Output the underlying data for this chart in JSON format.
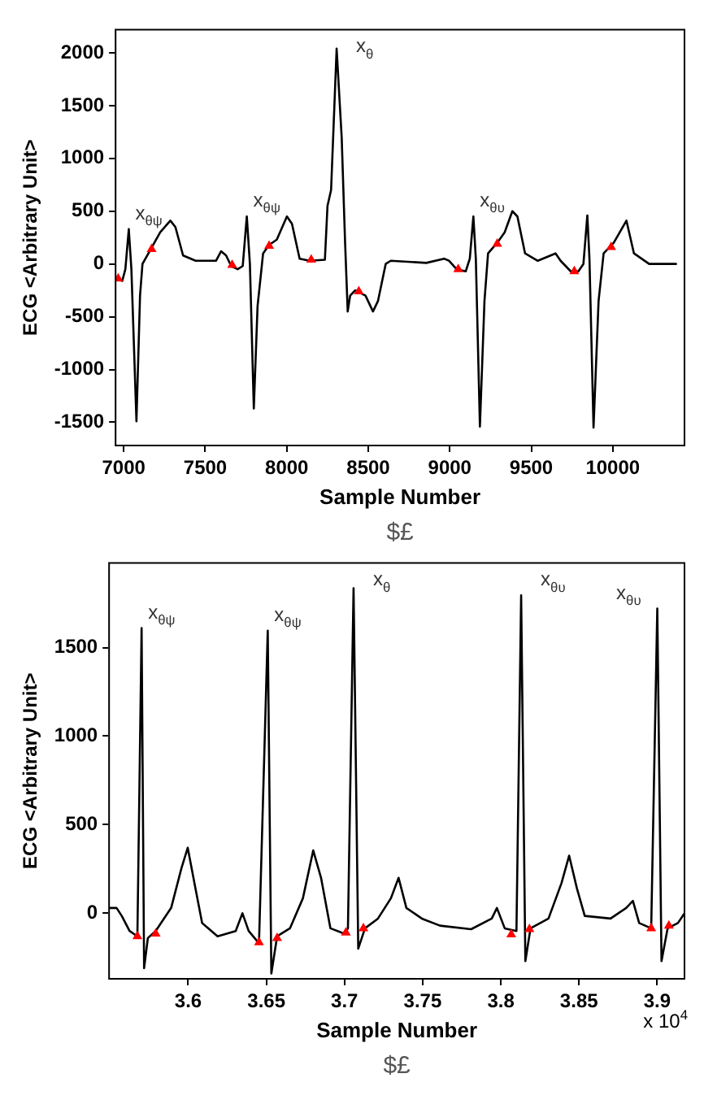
{
  "chart_data": [
    {
      "type": "line",
      "xlabel": "Sample Number",
      "ylabel": "ECG <Arbitrary Unit>",
      "xlim": [
        6950,
        10440
      ],
      "ylim": [
        -1720,
        2220
      ],
      "xticks": [
        7000,
        7500,
        8000,
        8500,
        9000,
        9500,
        10000
      ],
      "yticks": [
        -1500,
        -1000,
        -500,
        0,
        500,
        1000,
        1500,
        2000
      ],
      "grid": false,
      "legend": false,
      "series": [
        {
          "type": "line",
          "color": "#000000",
          "marker": "none",
          "x": [
            6960,
            6991,
            7010,
            7031,
            7047,
            7078,
            7100,
            7115,
            7162,
            7224,
            7286,
            7317,
            7364,
            7441,
            7566,
            7597,
            7628,
            7659,
            7699,
            7730,
            7755,
            7774,
            7798,
            7821,
            7855,
            7892,
            7939,
            8001,
            8032,
            8079,
            8141,
            8234,
            8250,
            8272,
            8306,
            8337,
            8358,
            8374,
            8389,
            8420,
            8483,
            8529,
            8560,
            8607,
            8638,
            8856,
            8965,
            8996,
            9042,
            9098,
            9123,
            9145,
            9160,
            9185,
            9213,
            9235,
            9291,
            9337,
            9384,
            9415,
            9462,
            9540,
            9649,
            9680,
            9742,
            9789,
            9820,
            9844,
            9857,
            9882,
            9913,
            9944,
            10006,
            10084,
            10130,
            10223,
            10388
          ],
          "values": [
            -140,
            -160,
            -50,
            330,
            -50,
            -1490,
            -300,
            0,
            130,
            300,
            410,
            350,
            80,
            30,
            30,
            120,
            80,
            -20,
            -50,
            -20,
            450,
            0,
            -1370,
            -400,
            100,
            180,
            230,
            450,
            380,
            50,
            30,
            40,
            550,
            700,
            2040,
            1200,
            200,
            -450,
            -300,
            -250,
            -300,
            -450,
            -350,
            0,
            30,
            10,
            50,
            30,
            -50,
            -70,
            50,
            450,
            50,
            -1540,
            -350,
            100,
            200,
            300,
            500,
            450,
            100,
            30,
            100,
            30,
            -70,
            -70,
            0,
            460,
            50,
            -1550,
            -350,
            100,
            200,
            410,
            100,
            0,
            0
          ]
        },
        {
          "type": "scatter",
          "color": "#ff0000",
          "marker": "triangle",
          "x": [
            6966,
            7171,
            7665,
            7892,
            8150,
            8442,
            9052,
            9291,
            9764,
            9990
          ],
          "values": [
            -140,
            140,
            -10,
            170,
            40,
            -260,
            -50,
            190,
            -70,
            160
          ]
        }
      ],
      "annotations": [
        {
          "text": "x$_{θψ}$",
          "x": 7031,
          "y": 330
        },
        {
          "text": "x$_{θψ}$",
          "x": 7755,
          "y": 450
        },
        {
          "text": "x$_{θ}$",
          "x": 8306,
          "y": 2040
        },
        {
          "text": "x$_{θυ}$",
          "x": 9145,
          "y": 450
        },
        "$£"
      ]
    },
    {
      "type": "line",
      "xlabel": "Sample Number",
      "ylabel": "ECG <Arbitrary Unit>",
      "xlim": [
        3.5494,
        3.9175
      ],
      "ylim": [
        -370,
        1978
      ],
      "xticks": [
        3.6,
        3.65,
        3.7,
        3.75,
        3.8,
        3.85,
        3.9
      ],
      "yticks": [
        0,
        500,
        1000,
        1500
      ],
      "grid": false,
      "legend": false,
      "series": [
        {
          "type": "line",
          "color": "#000000",
          "marker": "none",
          "x": [
            3.5498,
            3.5542,
            3.5575,
            3.5625,
            3.5675,
            3.5702,
            3.5718,
            3.5742,
            3.5792,
            3.5891,
            3.5957,
            3.5997,
            3.604,
            3.6089,
            3.6188,
            3.6304,
            3.6347,
            3.6387,
            3.6453,
            3.6509,
            3.6532,
            3.6569,
            3.6651,
            3.6734,
            3.68,
            3.685,
            3.691,
            3.6999,
            3.7022,
            3.7058,
            3.7088,
            3.7131,
            3.7214,
            3.7297,
            3.7346,
            3.7396,
            3.7495,
            3.7611,
            3.781,
            3.7942,
            3.7975,
            3.8025,
            3.81,
            3.813,
            3.8157,
            3.819,
            3.8305,
            3.8388,
            3.8437,
            3.8487,
            3.8537,
            3.8702,
            3.8802,
            3.8845,
            3.8885,
            3.8962,
            3.9001,
            3.9028,
            3.9067,
            3.9133,
            3.9175
          ],
          "values": [
            30,
            30,
            -15,
            -100,
            -130,
            1610,
            -310,
            -140,
            -100,
            30,
            255,
            370,
            170,
            -55,
            -130,
            -100,
            0,
            -100,
            -170,
            1595,
            -340,
            -130,
            -85,
            85,
            355,
            200,
            -85,
            -115,
            -85,
            1835,
            -200,
            -85,
            -30,
            85,
            200,
            30,
            -30,
            -70,
            -90,
            -30,
            30,
            -85,
            -100,
            1795,
            -270,
            -85,
            -30,
            170,
            325,
            140,
            -15,
            -30,
            30,
            70,
            -55,
            -85,
            1720,
            -270,
            -85,
            -55,
            0
          ]
        },
        {
          "type": "scatter",
          "color": "#ff0000",
          "marker": "triangle",
          "x": [
            3.5675,
            3.5792,
            3.6453,
            3.6569,
            3.7009,
            3.7121,
            3.8067,
            3.8183,
            3.8962,
            3.9075
          ],
          "values": [
            -130,
            -115,
            -165,
            -140,
            -110,
            -85,
            -120,
            -90,
            -85,
            -70
          ]
        }
      ],
      "annotations": [
        {
          "text": "x$_{θψ}$",
          "x": 3.5702,
          "y": 1610
        },
        {
          "text": "x$_{θψ}$",
          "x": 3.6509,
          "y": 1595
        },
        {
          "text": "x$_{θ}$",
          "x": 3.7058,
          "y": 1835
        },
        {
          "text": "x$_{θυ}$",
          "x": 3.813,
          "y": 1795
        },
        {
          "text": "x$_{θυ}$",
          "x": 3.9001,
          "y": 1720
        },
        "x 10$^{4}$",
        "$£"
      ]
    }
  ]
}
